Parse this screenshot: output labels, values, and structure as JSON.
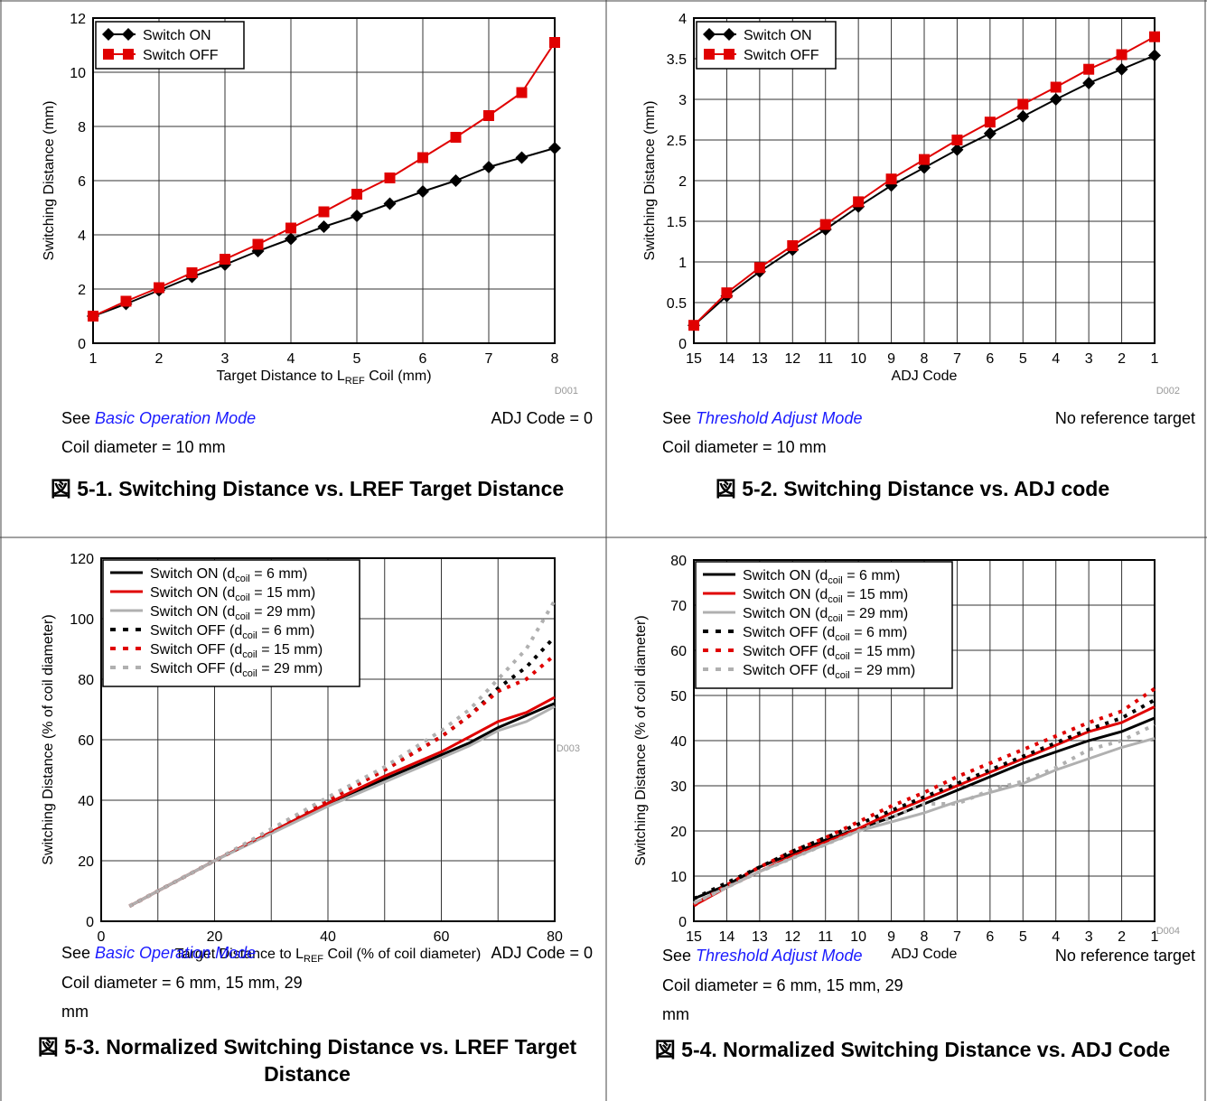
{
  "panels": [
    {
      "id": "p1",
      "see_prefix": "See ",
      "see_link": "Basic Operation Mode",
      "right_note": "ADJ Code = 0",
      "coil_note": "Coil diameter = 10 mm",
      "caption": "図 5-1. Switching Distance vs. LREF Target Distance"
    },
    {
      "id": "p2",
      "see_prefix": "See ",
      "see_link": "Threshold Adjust Mode",
      "right_note": "No reference target",
      "coil_note": "Coil diameter = 10 mm",
      "caption": "図 5-2. Switching Distance vs. ADJ code"
    },
    {
      "id": "p3",
      "see_prefix": "See ",
      "see_link": "Basic Operation Mode",
      "right_note": "ADJ Code = 0",
      "coil_note": "Coil diameter = 6 mm, 15 mm, 29",
      "coil_note_2": "mm",
      "caption": "図 5-3. Normalized Switching Distance vs. LREF Target Distance"
    },
    {
      "id": "p4",
      "see_prefix": "See ",
      "see_link": "Threshold Adjust Mode",
      "right_note": "No reference target",
      "coil_note": "Coil diameter = 6 mm, 15 mm, 29",
      "coil_note_2": "mm",
      "caption": "図 5-4. Normalized Switching Distance vs. ADJ Code"
    }
  ],
  "chart_data": [
    {
      "id": "D001",
      "type": "line",
      "xlabel": "Target Distance to L",
      "xlabel_sub": "REF",
      "xlabel_suffix": " Coil (mm)",
      "ylabel": "Switching Distance (mm)",
      "xlim": [
        1,
        8
      ],
      "ylim": [
        0,
        12
      ],
      "xticks": [
        "1",
        "2",
        "3",
        "4",
        "5",
        "6",
        "7",
        "8"
      ],
      "yticks": [
        "0",
        "2",
        "4",
        "6",
        "8",
        "10",
        "12"
      ],
      "legend_position": "top-left",
      "series": [
        {
          "name": "Switch ON",
          "color": "#000000",
          "marker": "diamond",
          "x": [
            1,
            1.5,
            2,
            2.5,
            3,
            3.5,
            4,
            4.5,
            5,
            5.5,
            6,
            6.5,
            7,
            7.5,
            8
          ],
          "y": [
            1.0,
            1.45,
            1.95,
            2.45,
            2.9,
            3.4,
            3.85,
            4.3,
            4.7,
            5.15,
            5.6,
            6.0,
            6.5,
            6.85,
            7.2
          ]
        },
        {
          "name": "Switch OFF",
          "color": "#e00000",
          "marker": "square",
          "x": [
            1,
            1.5,
            2,
            2.5,
            3,
            3.5,
            4,
            4.5,
            5,
            5.5,
            6,
            6.5,
            7,
            7.5,
            8
          ],
          "y": [
            1.0,
            1.55,
            2.05,
            2.6,
            3.1,
            3.65,
            4.25,
            4.85,
            5.5,
            6.1,
            6.85,
            7.6,
            8.4,
            9.25,
            11.1
          ]
        }
      ]
    },
    {
      "id": "D002",
      "type": "line",
      "xlabel": "ADJ Code",
      "ylabel": "Switching Distance (mm)",
      "xlim": [
        15,
        1
      ],
      "ylim": [
        0,
        4
      ],
      "xticks": [
        "15",
        "14",
        "13",
        "12",
        "11",
        "10",
        "9",
        "8",
        "7",
        "6",
        "5",
        "4",
        "3",
        "2",
        "1"
      ],
      "yticks": [
        "0",
        "0.5",
        "1",
        "1.5",
        "2",
        "2.5",
        "3",
        "3.5",
        "4"
      ],
      "legend_position": "top-left",
      "series": [
        {
          "name": "Switch ON",
          "color": "#000000",
          "marker": "diamond",
          "x": [
            15,
            14,
            13,
            12,
            11,
            10,
            9,
            8,
            7,
            6,
            5,
            4,
            3,
            2,
            1
          ],
          "y": [
            0.22,
            0.58,
            0.88,
            1.15,
            1.4,
            1.68,
            1.94,
            2.16,
            2.38,
            2.58,
            2.79,
            3.0,
            3.2,
            3.37,
            3.54
          ]
        },
        {
          "name": "Switch OFF",
          "color": "#e00000",
          "marker": "square",
          "x": [
            15,
            14,
            13,
            12,
            11,
            10,
            9,
            8,
            7,
            6,
            5,
            4,
            3,
            2,
            1
          ],
          "y": [
            0.22,
            0.62,
            0.93,
            1.2,
            1.46,
            1.74,
            2.02,
            2.26,
            2.5,
            2.72,
            2.94,
            3.15,
            3.37,
            3.55,
            3.77
          ]
        }
      ]
    },
    {
      "id": "D003",
      "type": "line",
      "xlabel": "Target Distance to L",
      "xlabel_sub": "REF",
      "xlabel_suffix": " Coil (% of coil diameter)",
      "ylabel": "Switching Distance (% of coil diameter)",
      "xlim": [
        0,
        80
      ],
      "ylim": [
        0,
        120
      ],
      "xticks": [
        "0",
        "20",
        "40",
        "60",
        "80"
      ],
      "yticks": [
        "0",
        "20",
        "40",
        "60",
        "80",
        "100",
        "120"
      ],
      "legend_position": "top-left",
      "series": [
        {
          "name": "Switch ON (d",
          "sub": "coil",
          "suffix": " = 6 mm)",
          "color": "#000000",
          "dash": false,
          "x": [
            5,
            20,
            40,
            50,
            60,
            65,
            70,
            75,
            80
          ],
          "y": [
            5,
            20,
            39,
            47,
            55,
            59,
            64,
            68,
            72
          ]
        },
        {
          "name": "Switch ON (d",
          "sub": "coil",
          "suffix": " = 15 mm)",
          "color": "#e00000",
          "dash": false,
          "x": [
            5,
            20,
            40,
            50,
            60,
            65,
            70,
            75,
            80
          ],
          "y": [
            5,
            20,
            39,
            48,
            56,
            61,
            66,
            69,
            74
          ]
        },
        {
          "name": "Switch ON (d",
          "sub": "coil",
          "suffix": " = 29 mm)",
          "color": "#b0b0b0",
          "dash": false,
          "x": [
            5,
            20,
            40,
            50,
            60,
            65,
            70,
            75,
            80
          ],
          "y": [
            5,
            20,
            38,
            46,
            54,
            58,
            63,
            66,
            71
          ]
        },
        {
          "name": "Switch OFF (d",
          "sub": "coil",
          "suffix": " = 6 mm)",
          "color": "#000000",
          "dash": true,
          "x": [
            5,
            20,
            40,
            50,
            60,
            65,
            70,
            75,
            80
          ],
          "y": [
            5,
            20,
            40,
            50,
            61,
            68,
            77,
            84,
            94
          ]
        },
        {
          "name": "Switch OFF (d",
          "sub": "coil",
          "suffix": " = 15 mm)",
          "color": "#e00000",
          "dash": true,
          "x": [
            5,
            20,
            40,
            50,
            60,
            65,
            70,
            75,
            80
          ],
          "y": [
            5,
            20,
            40,
            50,
            61,
            68,
            76,
            80,
            88
          ]
        },
        {
          "name": "Switch OFF (d",
          "sub": "coil",
          "suffix": " = 29 mm)",
          "color": "#b0b0b0",
          "dash": true,
          "x": [
            5,
            20,
            40,
            50,
            60,
            65,
            70,
            75,
            80
          ],
          "y": [
            5,
            20,
            41,
            51,
            63,
            70,
            80,
            90,
            106
          ]
        }
      ]
    },
    {
      "id": "D004",
      "type": "line",
      "xlabel": "ADJ Code",
      "ylabel": "Switching Distance (% of coil diameter)",
      "xlim": [
        15,
        1
      ],
      "ylim": [
        0,
        80
      ],
      "xticks": [
        "15",
        "14",
        "13",
        "12",
        "11",
        "10",
        "9",
        "8",
        "7",
        "6",
        "5",
        "4",
        "3",
        "2",
        "1"
      ],
      "yticks": [
        "0",
        "10",
        "20",
        "30",
        "40",
        "50",
        "60",
        "70",
        "80"
      ],
      "legend_position": "top-left",
      "series": [
        {
          "name": "Switch ON (d",
          "sub": "coil",
          "suffix": " = 6 mm)",
          "color": "#000000",
          "dash": false,
          "x": [
            15,
            14,
            13,
            12,
            11,
            10,
            9,
            8,
            7,
            6,
            5,
            4,
            3,
            2,
            1
          ],
          "y": [
            5,
            8,
            12,
            15,
            18,
            20.5,
            23,
            26,
            29,
            32,
            35,
            37.5,
            40,
            42,
            45
          ]
        },
        {
          "name": "Switch ON (d",
          "sub": "coil",
          "suffix": " = 15 mm)",
          "color": "#e00000",
          "dash": false,
          "x": [
            15,
            14,
            13,
            12,
            11,
            10,
            9,
            8,
            7,
            6,
            5,
            4,
            3,
            2,
            1
          ],
          "y": [
            3.5,
            7.5,
            11,
            14.5,
            17.5,
            20.5,
            24,
            27,
            30,
            33,
            36,
            39,
            42,
            44,
            47.5
          ]
        },
        {
          "name": "Switch ON (d",
          "sub": "coil",
          "suffix": " = 29 mm)",
          "color": "#b0b0b0",
          "dash": false,
          "x": [
            15,
            14,
            13,
            12,
            11,
            10,
            9,
            8,
            7,
            6,
            5,
            4,
            3,
            2,
            1
          ],
          "y": [
            4,
            7.5,
            11,
            14,
            17,
            20,
            22,
            24,
            26.5,
            28.5,
            30.5,
            33.5,
            36,
            38.5,
            40.5
          ]
        },
        {
          "name": "Switch OFF (d",
          "sub": "coil",
          "suffix": " = 6 mm)",
          "color": "#000000",
          "dash": true,
          "x": [
            15,
            14,
            13,
            12,
            11,
            10,
            9,
            8,
            7,
            6,
            5,
            4,
            3,
            2,
            1
          ],
          "y": [
            5,
            8.5,
            12,
            15.5,
            18.5,
            21.5,
            24.5,
            27.5,
            30.5,
            33.5,
            36.5,
            39.5,
            42.5,
            45,
            49
          ]
        },
        {
          "name": "Switch OFF (d",
          "sub": "coil",
          "suffix": " = 15 mm)",
          "color": "#e00000",
          "dash": true,
          "x": [
            15,
            14,
            13,
            12,
            11,
            10,
            9,
            8,
            7,
            6,
            5,
            4,
            3,
            2,
            1
          ],
          "y": [
            3.5,
            8,
            12,
            15.5,
            18.5,
            22,
            25.5,
            28.5,
            32,
            35,
            38,
            41,
            44,
            46.5,
            51.5
          ]
        },
        {
          "name": "Switch OFF (d",
          "sub": "coil",
          "suffix": " = 29 mm)",
          "color": "#b0b0b0",
          "dash": true,
          "x": [
            15,
            14,
            13,
            12,
            11,
            10,
            9,
            8,
            7,
            6,
            5,
            4,
            3,
            2,
            1
          ],
          "y": [
            4,
            7.5,
            11,
            14,
            17,
            20,
            23,
            26,
            26,
            29,
            31,
            34,
            38,
            40,
            43.5
          ]
        }
      ]
    }
  ]
}
